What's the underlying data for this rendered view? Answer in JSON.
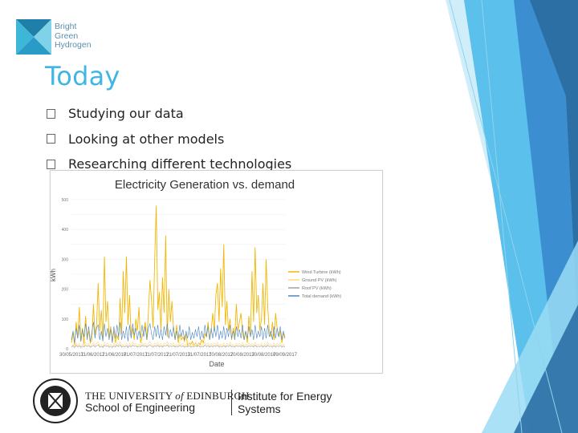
{
  "logo": {
    "line1": "Bright",
    "line2": "Green",
    "line3": "Hydrogen",
    "colors": {
      "dark": "#1f7fa8",
      "mid": "#3db6d8",
      "light": "#7fd2e8"
    }
  },
  "slide": {
    "title": "Today",
    "bullets": [
      {
        "text": "Studying our data"
      },
      {
        "text": "Looking at other models"
      },
      {
        "text": "Researching different technologies"
      }
    ]
  },
  "footer": {
    "uoe_name_prefix": "THE UNIVERSITY",
    "uoe_name_of": "of",
    "uoe_name_suffix": "EDINBURGH",
    "school": "School of Engineering",
    "institute_line1": "Institute for Energy",
    "institute_line2": "Systems",
    "seal_text": "THE UNIVERSITY OF EDINBURGH"
  },
  "theme": {
    "title_color": "#3fb6e3",
    "deco_colors": [
      "#2b6fa5",
      "#3b8fd0",
      "#5bc0ec",
      "#9bdcf4"
    ]
  },
  "chart_data": {
    "type": "line",
    "title": "Electricity Generation vs. demand",
    "xlabel": "Date",
    "ylabel": "kWh",
    "ylim": [
      0,
      500
    ],
    "yticks": [
      0,
      50,
      100,
      150,
      200,
      250,
      300,
      350,
      400,
      450,
      500
    ],
    "x_ticks": [
      "30/05/2017",
      "11/06/2017",
      "21/06/2017",
      "01/07/2017",
      "11/07/2017",
      "21/07/2017",
      "31/07/2017",
      "10/08/2017",
      "20/08/2017",
      "30/08/2017",
      "09/09/2017"
    ],
    "legend_position": "right",
    "series": [
      {
        "name": "Wind Turbine (kWh)",
        "color": "#f2b705",
        "values": [
          20,
          55,
          12,
          90,
          35,
          140,
          25,
          70,
          15,
          110,
          40,
          60,
          20,
          30,
          150,
          45,
          80,
          220,
          60,
          130,
          30,
          310,
          90,
          160,
          40,
          75,
          25,
          60,
          20,
          45,
          30,
          170,
          50,
          260,
          120,
          310,
          80,
          180,
          40,
          70,
          30,
          100,
          60,
          140,
          20,
          40,
          60,
          90,
          30,
          120,
          230,
          160,
          70,
          300,
          480,
          130,
          190,
          60,
          240,
          120,
          380,
          40,
          200,
          90,
          160,
          70,
          30,
          80,
          20,
          50,
          30,
          40,
          25,
          50,
          10,
          20,
          15,
          25,
          10,
          20,
          10,
          20,
          15,
          30,
          20,
          50,
          40,
          90,
          30,
          60,
          120,
          60,
          180,
          220,
          90,
          270,
          140,
          350,
          80,
          160,
          60,
          100,
          30,
          70,
          40,
          150,
          60,
          90,
          120,
          50,
          30,
          60,
          20,
          110,
          40,
          260,
          90,
          340,
          120,
          180,
          60,
          100,
          220,
          80,
          300,
          140,
          60,
          40,
          90,
          30,
          120,
          70,
          40,
          60,
          20,
          50,
          40
        ]
      },
      {
        "name": "Ground PV (kWh)",
        "color": "#ffd87a",
        "values": [
          8,
          15,
          5,
          20,
          10,
          18,
          6,
          16,
          9,
          22,
          12,
          18,
          7,
          14,
          20,
          10,
          18,
          24,
          8,
          16,
          6,
          22,
          12,
          20,
          9,
          15,
          7,
          18,
          10,
          20,
          12,
          24,
          8,
          16,
          10,
          18,
          6,
          20,
          10,
          22,
          14,
          18,
          8,
          16,
          10,
          22,
          12,
          20,
          9,
          18,
          24,
          14,
          8,
          20,
          12,
          22,
          10,
          18,
          8,
          20,
          14,
          24,
          10,
          18,
          12,
          20,
          8,
          16,
          10,
          22,
          12,
          18,
          9,
          16,
          10,
          20,
          8,
          14,
          10,
          18,
          12,
          20,
          9,
          16,
          10,
          22,
          12,
          20,
          8,
          18,
          10,
          20,
          12,
          22,
          9,
          16,
          10,
          20,
          8,
          18,
          12,
          22,
          10,
          16,
          9,
          20,
          12,
          18,
          10,
          22,
          8,
          16,
          10,
          20,
          12,
          18,
          9,
          22,
          10,
          16,
          12,
          20,
          8,
          18,
          10,
          22,
          12,
          16,
          9,
          20,
          10,
          18,
          12,
          20,
          8,
          16,
          10
        ]
      },
      {
        "name": "Roof PV (kWh)",
        "color": "#9aa3ad",
        "values": [
          5,
          10,
          4,
          12,
          6,
          10,
          4,
          9,
          6,
          12,
          7,
          11,
          5,
          8,
          12,
          6,
          10,
          14,
          5,
          9,
          4,
          12,
          7,
          11,
          5,
          9,
          4,
          10,
          6,
          12,
          7,
          13,
          5,
          9,
          6,
          10,
          4,
          11,
          6,
          12,
          8,
          10,
          5,
          9,
          6,
          12,
          7,
          11,
          5,
          10,
          13,
          8,
          5,
          11,
          7,
          12,
          6,
          10,
          5,
          11,
          8,
          13,
          6,
          10,
          7,
          11,
          5,
          9,
          6,
          12,
          7,
          10,
          5,
          9,
          6,
          11,
          5,
          8,
          6,
          10,
          7,
          11,
          5,
          9,
          6,
          12,
          7,
          11,
          5,
          10,
          6,
          11,
          7,
          12,
          5,
          9,
          6,
          11,
          5,
          10,
          7,
          12,
          6,
          9,
          5,
          11,
          7,
          10,
          6,
          12,
          5,
          9,
          6,
          11,
          7,
          10,
          5,
          12,
          6,
          9,
          7,
          11,
          5,
          10,
          6,
          12,
          7,
          9,
          5,
          11,
          6,
          10,
          7,
          11,
          5,
          9,
          6
        ]
      },
      {
        "name": "Total demand (kWh)",
        "color": "#4a86c6",
        "values": [
          30,
          60,
          20,
          70,
          35,
          80,
          25,
          65,
          40,
          85,
          30,
          75,
          25,
          55,
          90,
          35,
          70,
          80,
          30,
          60,
          25,
          85,
          40,
          70,
          30,
          65,
          20,
          75,
          35,
          80,
          40,
          90,
          30,
          60,
          35,
          75,
          25,
          80,
          35,
          85,
          45,
          70,
          30,
          60,
          35,
          80,
          40,
          75,
          30,
          70,
          85,
          50,
          30,
          75,
          40,
          80,
          35,
          65,
          30,
          75,
          45,
          85,
          35,
          65,
          40,
          75,
          30,
          60,
          35,
          80,
          40,
          65,
          30,
          60,
          35,
          75,
          30,
          55,
          35,
          65,
          40,
          75,
          30,
          60,
          35,
          80,
          40,
          75,
          30,
          70,
          35,
          75,
          40,
          80,
          30,
          60,
          35,
          75,
          30,
          70,
          40,
          80,
          35,
          60,
          30,
          75,
          40,
          65,
          35,
          80,
          30,
          60,
          35,
          75,
          40,
          65,
          30,
          80,
          35,
          60,
          40,
          75,
          30,
          70,
          35,
          80,
          40,
          60,
          30,
          75,
          35,
          70,
          40,
          75,
          30,
          60,
          35
        ]
      }
    ]
  }
}
